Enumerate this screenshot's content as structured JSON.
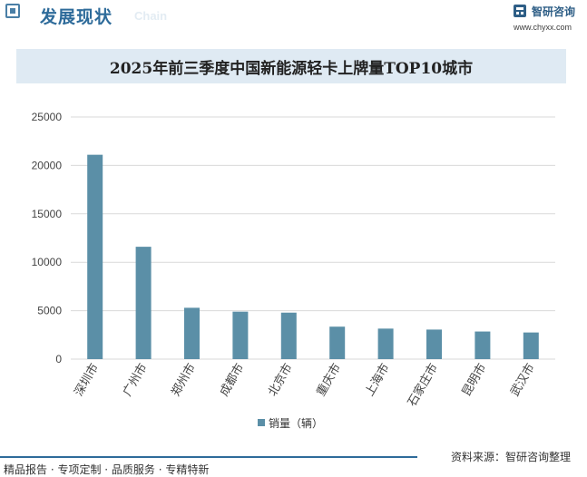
{
  "header": {
    "title": "发展现状",
    "subtitle": "Chain",
    "logo_text": "智研咨询",
    "logo_url": "www.chyxx.com"
  },
  "colors": {
    "bar": "#5b8fa7",
    "accent": "#2e6b9a",
    "title_band": "#dfeaf3",
    "grid": "#d9d9d9"
  },
  "chart_data": {
    "type": "bar",
    "title": "2025年前三季度中国新能源轻卡上牌量TOP10城市",
    "categories": [
      "深圳市",
      "广州市",
      "郑州市",
      "成都市",
      "北京市",
      "重庆市",
      "上海市",
      "石家庄市",
      "昆明市",
      "武汉市"
    ],
    "series": [
      {
        "name": "销量（辆）",
        "values": [
          21100,
          11600,
          5300,
          4900,
          4800,
          3350,
          3150,
          3050,
          2850,
          2750
        ]
      }
    ],
    "ylim": [
      0,
      25000
    ],
    "yticks": [
      0,
      5000,
      10000,
      15000,
      20000,
      25000
    ],
    "ytick_labels": [
      "0",
      "5000",
      "10000",
      "15000",
      "20000",
      "25000"
    ],
    "grid": true,
    "legend_position": "bottom"
  },
  "footer": {
    "left": "精品报告 · 专项定制 · 品质服务 · 专精特新",
    "right": "资料来源：智研咨询整理"
  }
}
